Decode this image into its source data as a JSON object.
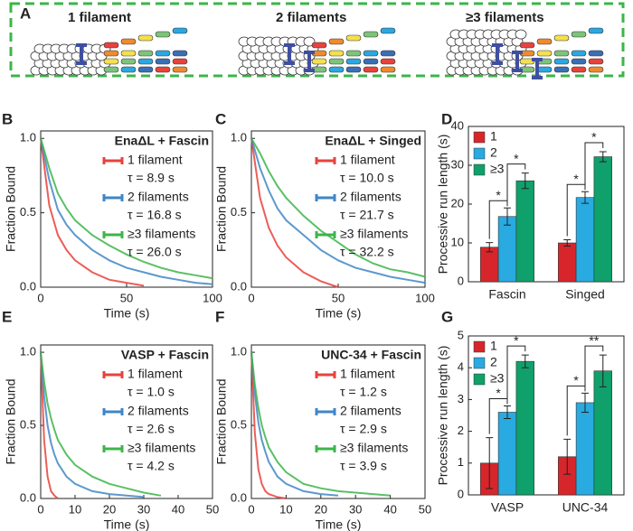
{
  "panel_a": {
    "panel": "A",
    "labels": [
      "1 filament",
      "2 filaments",
      "≥3 filaments"
    ]
  },
  "chart_data": [
    {
      "type": "line",
      "panel": "B",
      "title": "EnaΔL + Fascin",
      "xlabel": "Time (s)",
      "ylabel": "Fraction Bound",
      "x": [
        0,
        5,
        10,
        15,
        20,
        30,
        40,
        50,
        60,
        70,
        80,
        90,
        100
      ],
      "series": [
        {
          "name": "1 filament",
          "annotation": "τ = 8.9 s",
          "color": "#e8423c",
          "values": [
            1.0,
            0.55,
            0.35,
            0.25,
            0.18,
            0.1,
            0.05,
            0.03,
            0.01,
            null,
            null,
            null,
            null
          ]
        },
        {
          "name": "2 filaments",
          "annotation": "τ = 16.8 s",
          "color": "#3f86c6",
          "values": [
            1.0,
            0.72,
            0.52,
            0.42,
            0.35,
            0.25,
            0.18,
            0.13,
            0.1,
            0.07,
            0.05,
            0.03,
            0.02
          ]
        },
        {
          "name": "≥3 filaments",
          "annotation": "τ = 26.0 s",
          "color": "#3db54a",
          "values": [
            1.0,
            0.8,
            0.63,
            0.53,
            0.45,
            0.35,
            0.28,
            0.22,
            0.17,
            0.13,
            0.1,
            0.08,
            0.06
          ]
        }
      ],
      "xlim": [
        0,
        100
      ],
      "xticks": [
        0,
        50,
        100
      ],
      "ylim": [
        0,
        1.05
      ],
      "yticks": [
        {
          "value": 0,
          "label": "0.0"
        },
        {
          "value": 0.5,
          "label": "0.5"
        },
        {
          "value": 1,
          "label": "1.0"
        }
      ]
    },
    {
      "type": "line",
      "panel": "C",
      "title": "EnaΔL + Singed",
      "xlabel": "Time (s)",
      "ylabel": "Fraction Bound",
      "x": [
        0,
        5,
        10,
        15,
        20,
        30,
        40,
        50,
        60,
        70,
        80,
        90,
        100
      ],
      "series": [
        {
          "name": "1 filament",
          "annotation": "τ = 10.0 s",
          "color": "#e8423c",
          "values": [
            1.0,
            0.6,
            0.4,
            0.28,
            0.2,
            0.1,
            0.04,
            0.0,
            null,
            null,
            null,
            null,
            null
          ]
        },
        {
          "name": "2 filaments",
          "annotation": "τ = 21.7 s",
          "color": "#3f86c6",
          "values": [
            1.0,
            0.8,
            0.65,
            0.53,
            0.45,
            0.35,
            0.25,
            0.18,
            0.13,
            0.1,
            0.07,
            0.05,
            0.03
          ]
        },
        {
          "name": "≥3 filaments",
          "annotation": "τ = 32.2 s",
          "color": "#3db54a",
          "values": [
            1.0,
            0.9,
            0.78,
            0.68,
            0.6,
            0.48,
            0.38,
            0.3,
            0.22,
            0.16,
            0.12,
            0.1,
            0.07
          ]
        }
      ],
      "xlim": [
        0,
        100
      ],
      "xticks": [
        0,
        50,
        100
      ],
      "ylim": [
        0,
        1.05
      ],
      "yticks": [
        {
          "value": 0,
          "label": "0.0"
        },
        {
          "value": 0.5,
          "label": "0.5"
        },
        {
          "value": 1,
          "label": "1.0"
        }
      ]
    },
    {
      "type": "bar",
      "panel": "D",
      "ylabel": "Processive run length (s)",
      "categories": [
        "Fascin",
        "Singed"
      ],
      "series": [
        {
          "name": "1",
          "color": "#d7262b",
          "values": [
            8.9,
            10.0
          ],
          "errors": [
            1.2,
            0.8
          ]
        },
        {
          "name": "2",
          "color": "#29aae1",
          "values": [
            16.8,
            21.7
          ],
          "errors": [
            2.2,
            1.5
          ]
        },
        {
          "name": "≥3",
          "color": "#10a06b",
          "values": [
            26.0,
            32.2
          ],
          "errors": [
            2.0,
            1.3
          ]
        }
      ],
      "annotations": [
        "*",
        "*",
        "*",
        "*"
      ],
      "ylim": [
        0,
        40
      ],
      "yticks": [
        0,
        10,
        20,
        30,
        40
      ]
    },
    {
      "type": "line",
      "panel": "E",
      "title": "VASP + Fascin",
      "xlabel": "Time (s)",
      "ylabel": "Fraction Bound",
      "x": [
        0,
        1,
        2,
        3,
        4,
        5,
        7.5,
        10,
        15,
        20,
        25,
        30,
        35,
        40,
        45,
        50
      ],
      "series": [
        {
          "name": "1 filament",
          "annotation": "τ = 1.0 s",
          "color": "#e8423c",
          "values": [
            1.0,
            0.4,
            0.15,
            0.05,
            0.02,
            0.0,
            null,
            null,
            null,
            null,
            null,
            null,
            null,
            null,
            null,
            null
          ]
        },
        {
          "name": "2 filaments",
          "annotation": "τ = 2.6 s",
          "color": "#3f86c6",
          "values": [
            1.0,
            0.7,
            0.5,
            0.38,
            0.3,
            0.24,
            0.15,
            0.1,
            0.05,
            0.03,
            0.02,
            0.01,
            null,
            null,
            null,
            null
          ]
        },
        {
          "name": "≥3 filaments",
          "annotation": "τ = 4.2 s",
          "color": "#3db54a",
          "values": [
            1.0,
            0.8,
            0.65,
            0.55,
            0.47,
            0.4,
            0.3,
            0.23,
            0.15,
            0.1,
            0.07,
            0.04,
            0.02,
            null,
            null,
            null
          ]
        }
      ],
      "xlim": [
        0,
        50
      ],
      "xticks": [
        0,
        10,
        20,
        30,
        40,
        50
      ],
      "ylim": [
        0,
        1.05
      ],
      "yticks": [
        {
          "value": 0,
          "label": "0.0"
        },
        {
          "value": 0.5,
          "label": "0.5"
        },
        {
          "value": 1,
          "label": "1.0"
        }
      ]
    },
    {
      "type": "line",
      "panel": "F",
      "title": "UNC-34 + Fascin",
      "xlabel": "Time (s)",
      "ylabel": "Fraction Bound",
      "x": [
        0,
        1,
        2,
        3,
        4,
        5,
        7.5,
        10,
        15,
        20,
        25,
        30,
        35,
        40,
        45,
        50
      ],
      "series": [
        {
          "name": "1 filament",
          "annotation": "τ =  1.2 s",
          "color": "#e8423c",
          "values": [
            1.0,
            0.45,
            0.2,
            0.1,
            0.05,
            0.03,
            0.01,
            0.0,
            null,
            null,
            null,
            null,
            null,
            null,
            null,
            null
          ]
        },
        {
          "name": "2 filaments",
          "annotation": "τ =  2.9 s",
          "color": "#3f86c6",
          "values": [
            1.0,
            0.72,
            0.52,
            0.4,
            0.32,
            0.25,
            0.15,
            0.1,
            0.05,
            0.03,
            0.02,
            null,
            null,
            null,
            null,
            null
          ]
        },
        {
          "name": "≥3 filaments",
          "annotation": "τ =  3.9 s",
          "color": "#3db54a",
          "values": [
            1.0,
            0.78,
            0.62,
            0.5,
            0.42,
            0.35,
            0.25,
            0.18,
            0.1,
            0.07,
            0.05,
            0.04,
            0.03,
            0.02,
            null,
            null
          ]
        }
      ],
      "xlim": [
        0,
        50
      ],
      "xticks": [
        0,
        10,
        20,
        30,
        40,
        50
      ],
      "ylim": [
        0,
        1.05
      ],
      "yticks": [
        {
          "value": 0,
          "label": "0.0"
        },
        {
          "value": 0.5,
          "label": "0.5"
        },
        {
          "value": 1,
          "label": "1.0"
        }
      ]
    },
    {
      "type": "bar",
      "panel": "G",
      "ylabel": "Processive run length (s)",
      "categories": [
        "VASP",
        "UNC-34"
      ],
      "series": [
        {
          "name": "1",
          "color": "#d7262b",
          "values": [
            1.0,
            1.2
          ],
          "errors": [
            0.8,
            0.55
          ]
        },
        {
          "name": "2",
          "color": "#29aae1",
          "values": [
            2.6,
            2.9
          ],
          "errors": [
            0.2,
            0.3
          ]
        },
        {
          "name": "≥3",
          "color": "#10a06b",
          "values": [
            4.2,
            3.9
          ],
          "errors": [
            0.2,
            0.5
          ]
        }
      ],
      "annotations": [
        "*",
        "*",
        "*",
        "**"
      ],
      "ylim": [
        0,
        5
      ],
      "yticks": [
        0,
        1,
        2,
        3,
        4,
        5
      ]
    }
  ]
}
